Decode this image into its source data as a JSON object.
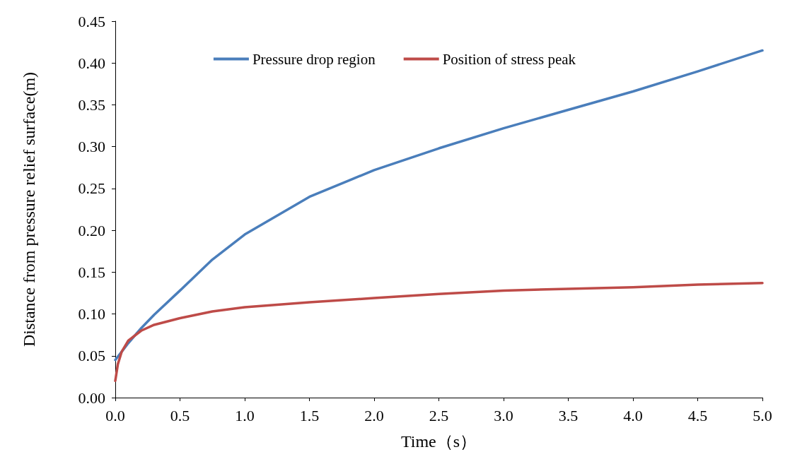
{
  "chart_data": {
    "type": "line",
    "xlabel": "Time（s）",
    "ylabel": "Distance from pressure relief surface(m)",
    "xlim": [
      0,
      5
    ],
    "ylim": [
      0,
      0.45
    ],
    "xticks": [
      {
        "value": 0,
        "label": "0.0"
      },
      {
        "value": 0.5,
        "label": "0.5"
      },
      {
        "value": 1,
        "label": "1.0"
      },
      {
        "value": 1.5,
        "label": "1.5"
      },
      {
        "value": 2,
        "label": "2.0"
      },
      {
        "value": 2.5,
        "label": "2.5"
      },
      {
        "value": 3,
        "label": "3.0"
      },
      {
        "value": 3.5,
        "label": "3.5"
      },
      {
        "value": 4,
        "label": "4.0"
      },
      {
        "value": 4.5,
        "label": "4.5"
      },
      {
        "value": 5,
        "label": "5.0"
      }
    ],
    "yticks": [
      {
        "value": 0,
        "label": "0.00"
      },
      {
        "value": 0.05,
        "label": "0.05"
      },
      {
        "value": 0.1,
        "label": "0.10"
      },
      {
        "value": 0.15,
        "label": "0.15"
      },
      {
        "value": 0.2,
        "label": "0.20"
      },
      {
        "value": 0.25,
        "label": "0.25"
      },
      {
        "value": 0.3,
        "label": "0.30"
      },
      {
        "value": 0.35,
        "label": "0.35"
      },
      {
        "value": 0.4,
        "label": "0.40"
      },
      {
        "value": 0.45,
        "label": "0.45"
      }
    ],
    "grid": false,
    "legend": "top",
    "marker": "none",
    "line_style": "solid",
    "x": [
      0,
      0.05,
      0.1,
      0.2,
      0.3,
      0.5,
      0.75,
      1,
      1.5,
      2,
      2.5,
      3,
      3.5,
      4,
      4.5,
      5
    ],
    "series": [
      {
        "name": "Pressure drop region",
        "color": "#4a7ebb",
        "values": [
          0.045,
          0.055,
          0.065,
          0.083,
          0.099,
          0.128,
          0.165,
          0.195,
          0.24,
          0.272,
          0.298,
          0.322,
          0.344,
          0.366,
          0.39,
          0.415
        ]
      },
      {
        "name": "Position of stress peak",
        "color": "#be4b48",
        "x": [
          0,
          0.02,
          0.05,
          0.1,
          0.2,
          0.3,
          0.5,
          0.75,
          1,
          1.5,
          2,
          2.5,
          3,
          3.5,
          4,
          4.5,
          5
        ],
        "values": [
          0.02,
          0.04,
          0.055,
          0.068,
          0.08,
          0.087,
          0.095,
          0.103,
          0.108,
          0.114,
          0.119,
          0.124,
          0.128,
          0.13,
          0.132,
          0.135,
          0.137
        ]
      }
    ]
  }
}
